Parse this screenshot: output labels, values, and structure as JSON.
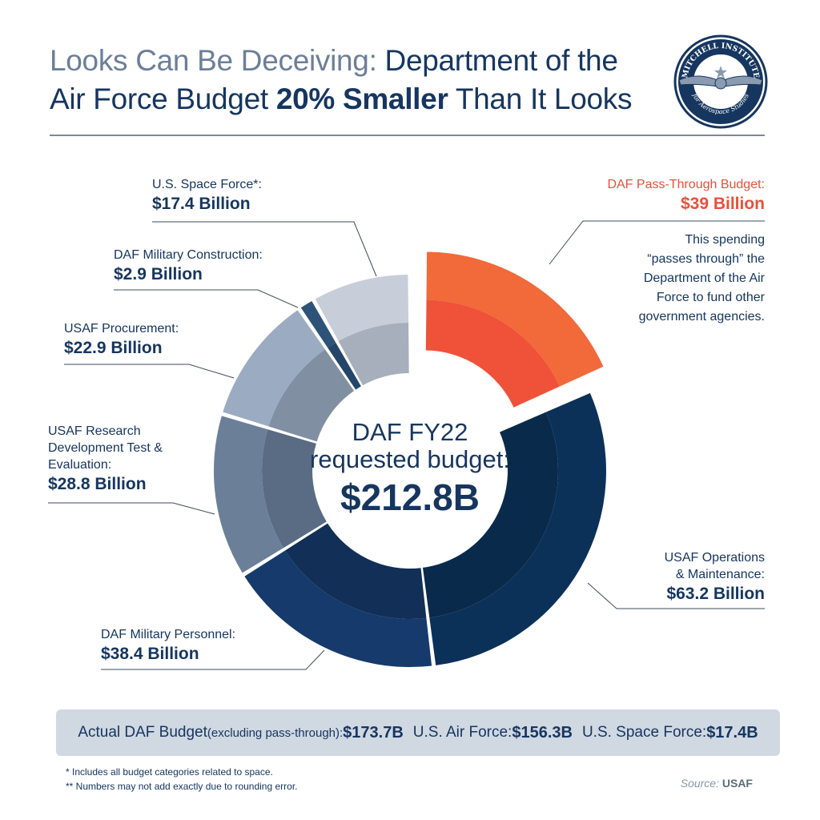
{
  "title": {
    "part_a": "Looks Can Be Deceiving: ",
    "part_b": "Department of the Air Force Budget ",
    "part_c": "20% Smaller",
    "part_d": " Than It Looks"
  },
  "logo": {
    "text_top": "MITCHELL INSTITUTE",
    "text_bottom": "for Aerospace Studies",
    "colors": {
      "navy": "#163660",
      "steel": "#8a9ab0"
    }
  },
  "center": {
    "line1": "DAF FY22",
    "line2": "requested budget:",
    "total": "$212.8B"
  },
  "pass_through_note": "This spending “passes through” the Department of the Air Force to fund other government agencies.",
  "chart_data": {
    "type": "pie",
    "style": "donut, two-tone ring, pass-through slice exploded",
    "total": 212.8,
    "unit": "Billion USD",
    "slices": [
      {
        "name": "DAF Pass-Through Budget:",
        "label": "$39 Billion",
        "value": 39,
        "outer": "#f2693a",
        "inner": "#ef5238",
        "exploded": true
      },
      {
        "name": "USAF Operations & Maintenance:",
        "label": "$63.2 Billion",
        "value": 63.2,
        "outer": "#0c3158",
        "inner": "#0a2a4c"
      },
      {
        "name": "DAF Military Personnel:",
        "label": "$38.4 Billion",
        "value": 38.4,
        "outer": "#163a6b",
        "inner": "#112f57"
      },
      {
        "name": "USAF Research Development Test & Evaluation:",
        "label": "$28.8 Billion",
        "value": 28.8,
        "outer": "#6c7f99",
        "inner": "#5a6b84"
      },
      {
        "name": "USAF Procurement:",
        "label": "$22.9 Billion",
        "value": 22.9,
        "outer": "#9bacc2",
        "inner": "#808fa2"
      },
      {
        "name": "DAF Military Construction:",
        "label": "$2.9 Billion",
        "value": 2.9,
        "outer": "#2d5378",
        "inner": "#24466a"
      },
      {
        "name": "U.S. Space Force*:",
        "label": "$17.4 Billion",
        "value": 17.4,
        "outer": "#c7ced9",
        "inner": "#a6afbb"
      }
    ]
  },
  "summary": {
    "label": "Actual DAF Budget",
    "sub": " (excluding pass-through): ",
    "actual_value": "$173.7B",
    "af_label": "U.S. Air Force: ",
    "af_value": "$156.3B",
    "sf_label": "U.S. Space Force: ",
    "sf_value": "$17.4B"
  },
  "footnotes": {
    "f1": "* Includes all budget categories related to space.",
    "f2": "** Numbers may not add exactly due to rounding error."
  },
  "source": {
    "label": "Source: ",
    "value": "USAF"
  }
}
